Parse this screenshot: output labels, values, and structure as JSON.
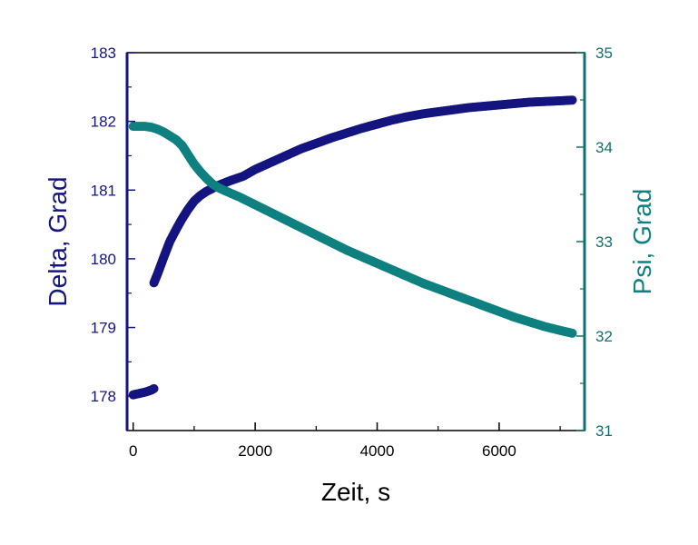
{
  "chart_data": {
    "type": "scatter",
    "title": "",
    "xlabel": "Zeit, s",
    "ylabel_left": "Delta, Grad",
    "ylabel_right": "Psi, Grad",
    "xlim": [
      -100,
      7400
    ],
    "ylim_left": [
      177.5,
      183
    ],
    "ylim_right": [
      31,
      35
    ],
    "x_ticks": [
      0,
      2000,
      4000,
      6000
    ],
    "y_left_ticks": [
      178,
      179,
      180,
      181,
      182,
      183
    ],
    "y_right_ticks": [
      31,
      32,
      33,
      34,
      35
    ],
    "grid": false,
    "legend": "none",
    "colors": {
      "delta": "#151580",
      "psi": "#0e8080",
      "left_axis": "#151580",
      "right_axis": "#0e7070",
      "frame": "#000000"
    },
    "series": [
      {
        "axis": "left",
        "points": [
          [
            0,
            178.02
          ],
          [
            100,
            178.04
          ],
          [
            200,
            178.06
          ],
          [
            300,
            178.09
          ],
          [
            340,
            178.11
          ]
        ]
      },
      {
        "axis": "left",
        "points": [
          [
            340,
            179.65
          ],
          [
            400,
            179.78
          ],
          [
            500,
            180.02
          ],
          [
            600,
            180.25
          ],
          [
            700,
            180.42
          ],
          [
            800,
            180.58
          ],
          [
            900,
            180.72
          ],
          [
            1000,
            180.84
          ],
          [
            1100,
            180.92
          ],
          [
            1200,
            180.98
          ],
          [
            1400,
            181.07
          ],
          [
            1600,
            181.14
          ],
          [
            1800,
            181.2
          ],
          [
            2000,
            181.3
          ],
          [
            2250,
            181.4
          ],
          [
            2500,
            181.5
          ],
          [
            2750,
            181.6
          ],
          [
            3000,
            181.68
          ],
          [
            3250,
            181.76
          ],
          [
            3500,
            181.83
          ],
          [
            3750,
            181.9
          ],
          [
            4000,
            181.96
          ],
          [
            4250,
            182.02
          ],
          [
            4500,
            182.07
          ],
          [
            4750,
            182.11
          ],
          [
            5000,
            182.14
          ],
          [
            5250,
            182.17
          ],
          [
            5500,
            182.2
          ],
          [
            5750,
            182.22
          ],
          [
            6000,
            182.24
          ],
          [
            6250,
            182.26
          ],
          [
            6500,
            182.28
          ],
          [
            6750,
            182.29
          ],
          [
            7000,
            182.3
          ],
          [
            7200,
            182.31
          ]
        ]
      },
      {
        "axis": "right",
        "points": [
          [
            0,
            34.22
          ],
          [
            100,
            34.22
          ],
          [
            200,
            34.22
          ],
          [
            300,
            34.21
          ],
          [
            400,
            34.19
          ],
          [
            500,
            34.16
          ],
          [
            600,
            34.12
          ],
          [
            700,
            34.08
          ],
          [
            800,
            34.02
          ],
          [
            900,
            33.92
          ],
          [
            1000,
            33.82
          ],
          [
            1100,
            33.74
          ],
          [
            1200,
            33.67
          ],
          [
            1300,
            33.61
          ],
          [
            1400,
            33.57
          ],
          [
            1500,
            33.54
          ],
          [
            1750,
            33.47
          ],
          [
            2000,
            33.39
          ],
          [
            2250,
            33.31
          ],
          [
            2500,
            33.23
          ],
          [
            2750,
            33.15
          ],
          [
            3000,
            33.07
          ],
          [
            3250,
            32.99
          ],
          [
            3500,
            32.91
          ],
          [
            3750,
            32.84
          ],
          [
            4000,
            32.77
          ],
          [
            4250,
            32.7
          ],
          [
            4500,
            32.63
          ],
          [
            4750,
            32.56
          ],
          [
            5000,
            32.5
          ],
          [
            5250,
            32.44
          ],
          [
            5500,
            32.38
          ],
          [
            5750,
            32.32
          ],
          [
            6000,
            32.26
          ],
          [
            6250,
            32.2
          ],
          [
            6500,
            32.15
          ],
          [
            6750,
            32.1
          ],
          [
            7000,
            32.06
          ],
          [
            7200,
            32.03
          ]
        ]
      }
    ]
  }
}
